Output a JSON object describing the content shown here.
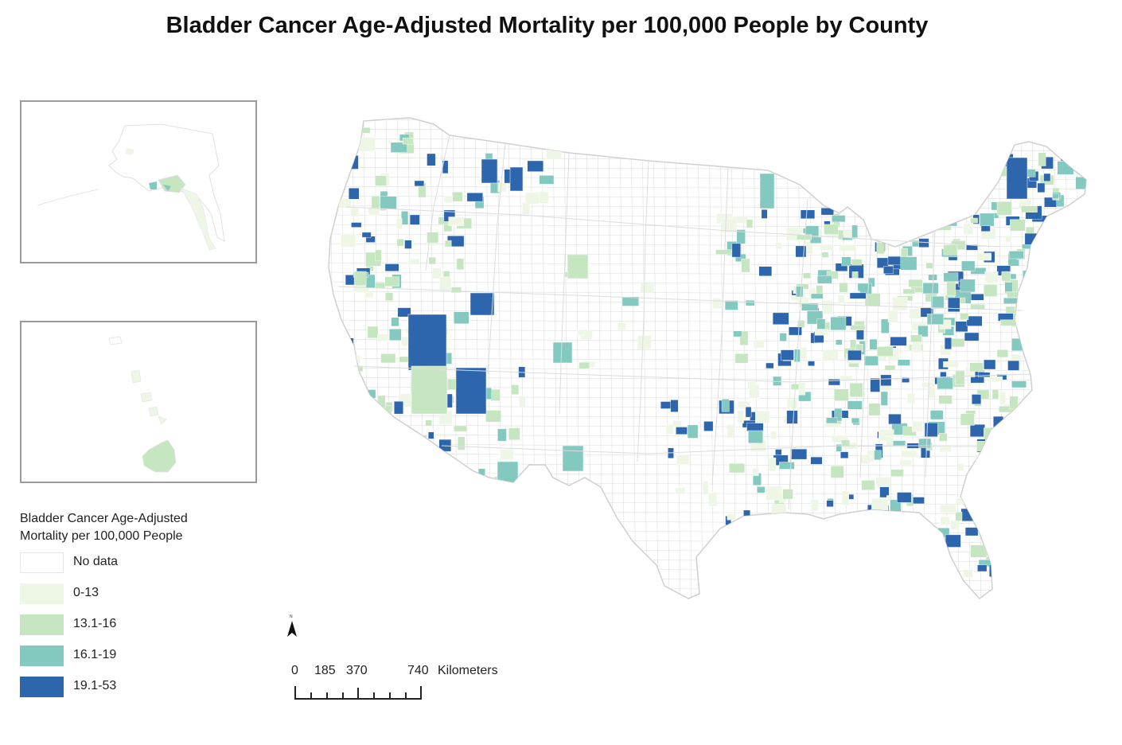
{
  "title": "Bladder Cancer Age-Adjusted Mortality per 100,000 People by County",
  "legend": {
    "title_line1": "Bladder Cancer Age-Adjusted",
    "title_line2": "Mortality per 100,000 People",
    "classes": [
      {
        "label": "No data",
        "color": "#ffffff"
      },
      {
        "label": "0-13",
        "color": "#eef6e6"
      },
      {
        "label": "13.1-16",
        "color": "#c6e5c1"
      },
      {
        "label": "16.1-19",
        "color": "#84c9bf"
      },
      {
        "label": "19.1-53",
        "color": "#2e66ad"
      }
    ]
  },
  "scale": {
    "ticks": [
      "0",
      "185",
      "370",
      "740"
    ],
    "unit": "Kilometers"
  },
  "colors": {
    "county_border": "#d9d9d9",
    "inset_border": "#9a9a9a"
  }
}
